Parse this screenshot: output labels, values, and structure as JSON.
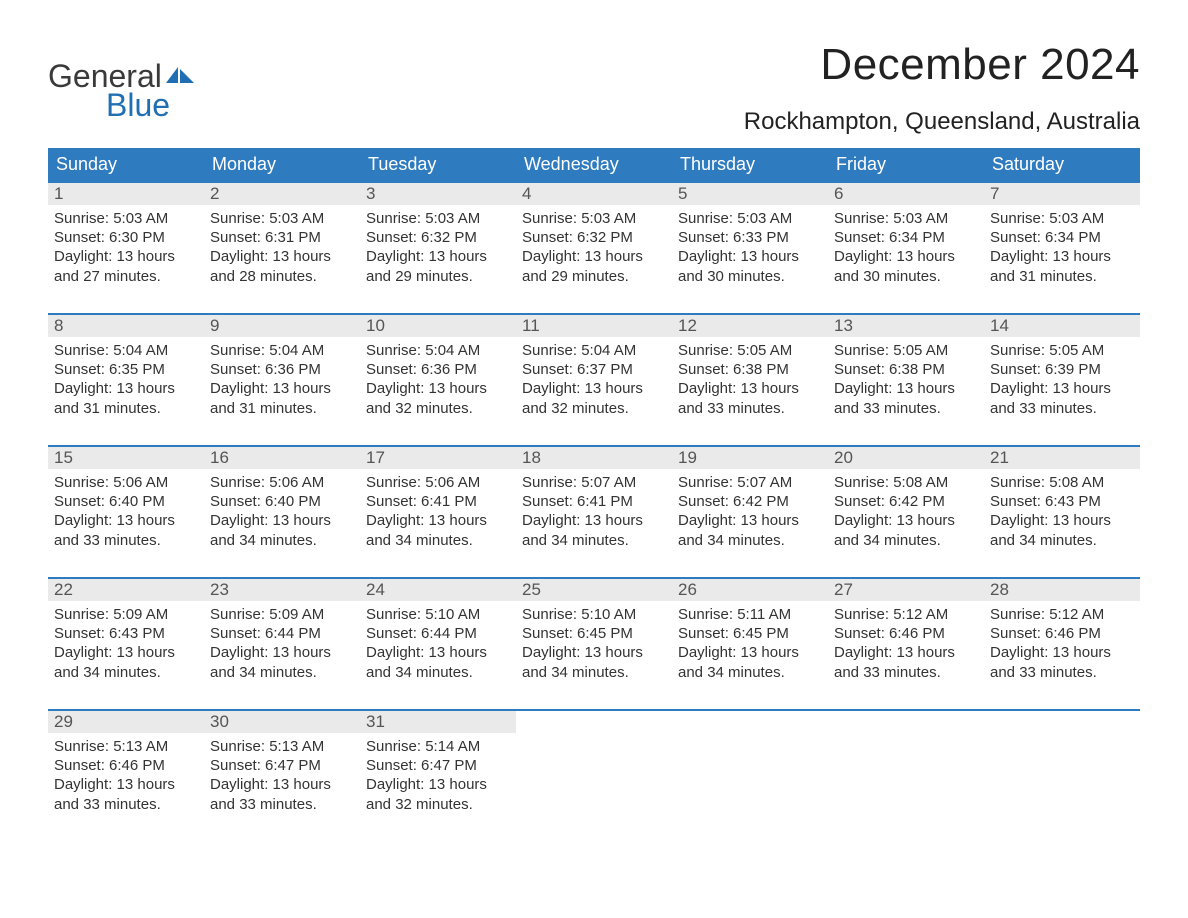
{
  "logo": {
    "word1": "General",
    "word2": "Blue",
    "flag_color": "#1f6fb2",
    "text_dark": "#3a3a3a"
  },
  "title": "December 2024",
  "location": "Rockhampton, Queensland, Australia",
  "colors": {
    "header_bg": "#2f7bbf",
    "header_text": "#ffffff",
    "daynum_bg": "#eaeaea",
    "daynum_text": "#555555",
    "body_text": "#333333",
    "week_border": "#2f7bbf",
    "page_bg": "#ffffff"
  },
  "typography": {
    "title_fontsize": 44,
    "location_fontsize": 24,
    "dow_fontsize": 18,
    "daynum_fontsize": 17,
    "body_fontsize": 15
  },
  "days_of_week": [
    "Sunday",
    "Monday",
    "Tuesday",
    "Wednesday",
    "Thursday",
    "Friday",
    "Saturday"
  ],
  "weeks": [
    [
      {
        "n": "1",
        "sunrise": "Sunrise: 5:03 AM",
        "sunset": "Sunset: 6:30 PM",
        "d1": "Daylight: 13 hours",
        "d2": "and 27 minutes."
      },
      {
        "n": "2",
        "sunrise": "Sunrise: 5:03 AM",
        "sunset": "Sunset: 6:31 PM",
        "d1": "Daylight: 13 hours",
        "d2": "and 28 minutes."
      },
      {
        "n": "3",
        "sunrise": "Sunrise: 5:03 AM",
        "sunset": "Sunset: 6:32 PM",
        "d1": "Daylight: 13 hours",
        "d2": "and 29 minutes."
      },
      {
        "n": "4",
        "sunrise": "Sunrise: 5:03 AM",
        "sunset": "Sunset: 6:32 PM",
        "d1": "Daylight: 13 hours",
        "d2": "and 29 minutes."
      },
      {
        "n": "5",
        "sunrise": "Sunrise: 5:03 AM",
        "sunset": "Sunset: 6:33 PM",
        "d1": "Daylight: 13 hours",
        "d2": "and 30 minutes."
      },
      {
        "n": "6",
        "sunrise": "Sunrise: 5:03 AM",
        "sunset": "Sunset: 6:34 PM",
        "d1": "Daylight: 13 hours",
        "d2": "and 30 minutes."
      },
      {
        "n": "7",
        "sunrise": "Sunrise: 5:03 AM",
        "sunset": "Sunset: 6:34 PM",
        "d1": "Daylight: 13 hours",
        "d2": "and 31 minutes."
      }
    ],
    [
      {
        "n": "8",
        "sunrise": "Sunrise: 5:04 AM",
        "sunset": "Sunset: 6:35 PM",
        "d1": "Daylight: 13 hours",
        "d2": "and 31 minutes."
      },
      {
        "n": "9",
        "sunrise": "Sunrise: 5:04 AM",
        "sunset": "Sunset: 6:36 PM",
        "d1": "Daylight: 13 hours",
        "d2": "and 31 minutes."
      },
      {
        "n": "10",
        "sunrise": "Sunrise: 5:04 AM",
        "sunset": "Sunset: 6:36 PM",
        "d1": "Daylight: 13 hours",
        "d2": "and 32 minutes."
      },
      {
        "n": "11",
        "sunrise": "Sunrise: 5:04 AM",
        "sunset": "Sunset: 6:37 PM",
        "d1": "Daylight: 13 hours",
        "d2": "and 32 minutes."
      },
      {
        "n": "12",
        "sunrise": "Sunrise: 5:05 AM",
        "sunset": "Sunset: 6:38 PM",
        "d1": "Daylight: 13 hours",
        "d2": "and 33 minutes."
      },
      {
        "n": "13",
        "sunrise": "Sunrise: 5:05 AM",
        "sunset": "Sunset: 6:38 PM",
        "d1": "Daylight: 13 hours",
        "d2": "and 33 minutes."
      },
      {
        "n": "14",
        "sunrise": "Sunrise: 5:05 AM",
        "sunset": "Sunset: 6:39 PM",
        "d1": "Daylight: 13 hours",
        "d2": "and 33 minutes."
      }
    ],
    [
      {
        "n": "15",
        "sunrise": "Sunrise: 5:06 AM",
        "sunset": "Sunset: 6:40 PM",
        "d1": "Daylight: 13 hours",
        "d2": "and 33 minutes."
      },
      {
        "n": "16",
        "sunrise": "Sunrise: 5:06 AM",
        "sunset": "Sunset: 6:40 PM",
        "d1": "Daylight: 13 hours",
        "d2": "and 34 minutes."
      },
      {
        "n": "17",
        "sunrise": "Sunrise: 5:06 AM",
        "sunset": "Sunset: 6:41 PM",
        "d1": "Daylight: 13 hours",
        "d2": "and 34 minutes."
      },
      {
        "n": "18",
        "sunrise": "Sunrise: 5:07 AM",
        "sunset": "Sunset: 6:41 PM",
        "d1": "Daylight: 13 hours",
        "d2": "and 34 minutes."
      },
      {
        "n": "19",
        "sunrise": "Sunrise: 5:07 AM",
        "sunset": "Sunset: 6:42 PM",
        "d1": "Daylight: 13 hours",
        "d2": "and 34 minutes."
      },
      {
        "n": "20",
        "sunrise": "Sunrise: 5:08 AM",
        "sunset": "Sunset: 6:42 PM",
        "d1": "Daylight: 13 hours",
        "d2": "and 34 minutes."
      },
      {
        "n": "21",
        "sunrise": "Sunrise: 5:08 AM",
        "sunset": "Sunset: 6:43 PM",
        "d1": "Daylight: 13 hours",
        "d2": "and 34 minutes."
      }
    ],
    [
      {
        "n": "22",
        "sunrise": "Sunrise: 5:09 AM",
        "sunset": "Sunset: 6:43 PM",
        "d1": "Daylight: 13 hours",
        "d2": "and 34 minutes."
      },
      {
        "n": "23",
        "sunrise": "Sunrise: 5:09 AM",
        "sunset": "Sunset: 6:44 PM",
        "d1": "Daylight: 13 hours",
        "d2": "and 34 minutes."
      },
      {
        "n": "24",
        "sunrise": "Sunrise: 5:10 AM",
        "sunset": "Sunset: 6:44 PM",
        "d1": "Daylight: 13 hours",
        "d2": "and 34 minutes."
      },
      {
        "n": "25",
        "sunrise": "Sunrise: 5:10 AM",
        "sunset": "Sunset: 6:45 PM",
        "d1": "Daylight: 13 hours",
        "d2": "and 34 minutes."
      },
      {
        "n": "26",
        "sunrise": "Sunrise: 5:11 AM",
        "sunset": "Sunset: 6:45 PM",
        "d1": "Daylight: 13 hours",
        "d2": "and 34 minutes."
      },
      {
        "n": "27",
        "sunrise": "Sunrise: 5:12 AM",
        "sunset": "Sunset: 6:46 PM",
        "d1": "Daylight: 13 hours",
        "d2": "and 33 minutes."
      },
      {
        "n": "28",
        "sunrise": "Sunrise: 5:12 AM",
        "sunset": "Sunset: 6:46 PM",
        "d1": "Daylight: 13 hours",
        "d2": "and 33 minutes."
      }
    ],
    [
      {
        "n": "29",
        "sunrise": "Sunrise: 5:13 AM",
        "sunset": "Sunset: 6:46 PM",
        "d1": "Daylight: 13 hours",
        "d2": "and 33 minutes."
      },
      {
        "n": "30",
        "sunrise": "Sunrise: 5:13 AM",
        "sunset": "Sunset: 6:47 PM",
        "d1": "Daylight: 13 hours",
        "d2": "and 33 minutes."
      },
      {
        "n": "31",
        "sunrise": "Sunrise: 5:14 AM",
        "sunset": "Sunset: 6:47 PM",
        "d1": "Daylight: 13 hours",
        "d2": "and 32 minutes."
      },
      {
        "empty": true
      },
      {
        "empty": true
      },
      {
        "empty": true
      },
      {
        "empty": true
      }
    ]
  ]
}
